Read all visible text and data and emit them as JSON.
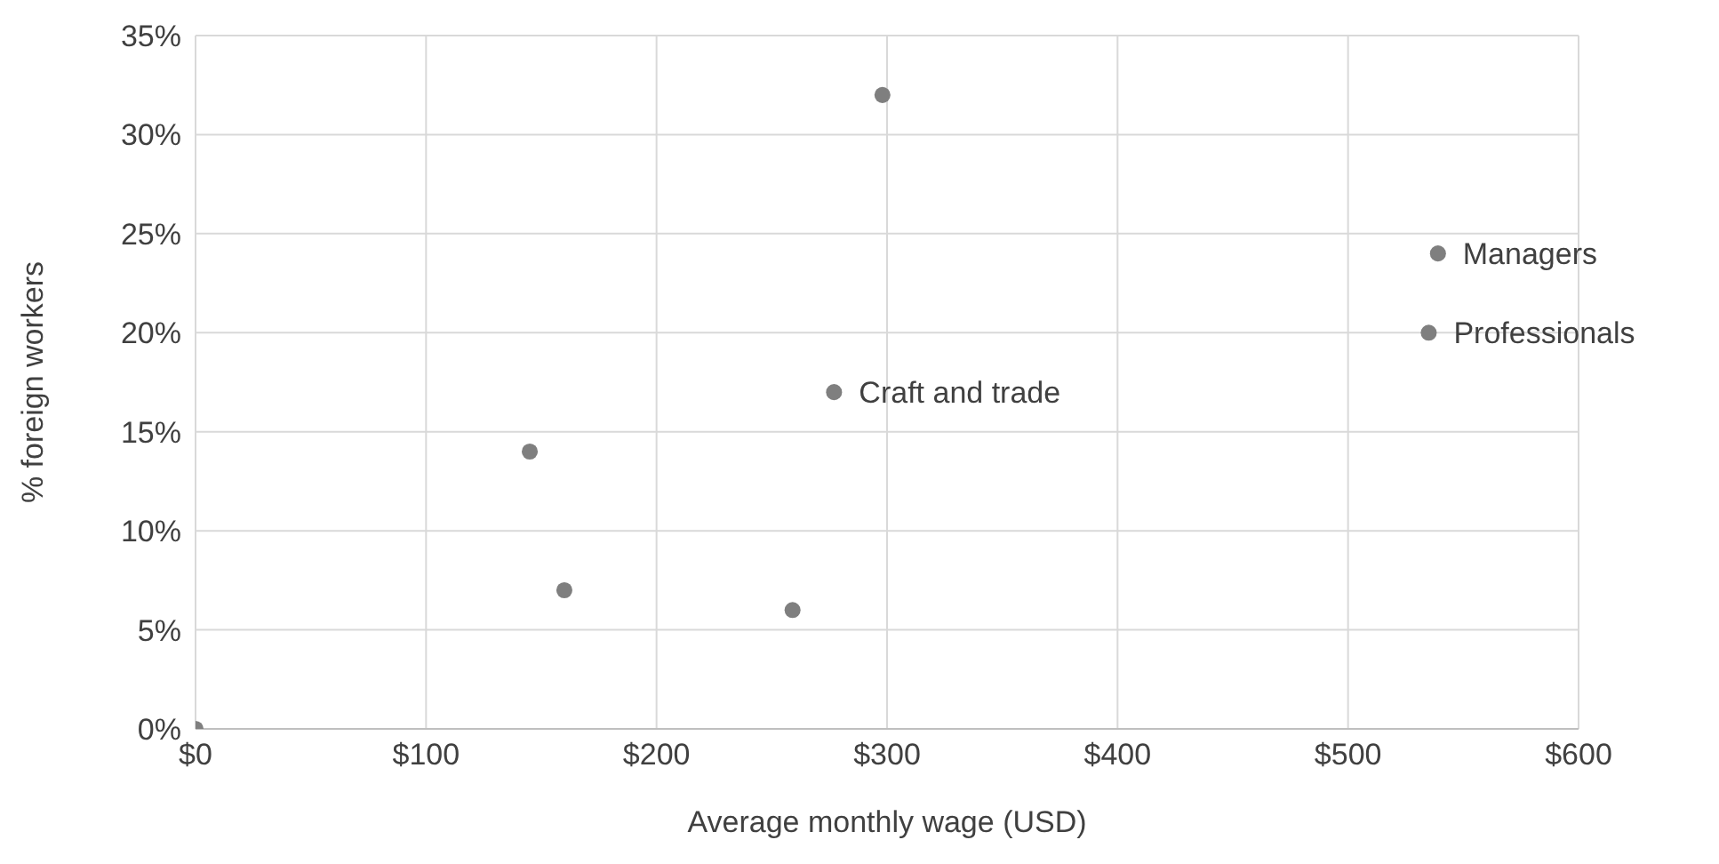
{
  "chart_data": {
    "type": "scatter",
    "xlabel": "Average monthly wage (USD)",
    "ylabel": "% foreign workers",
    "x": [
      0,
      145,
      160,
      259,
      277,
      298,
      535,
      539
    ],
    "series": [
      {
        "color": "#7f7f7f",
        "values": [
          0,
          14,
          7,
          6,
          17,
          32,
          20,
          24
        ]
      }
    ],
    "xlim": [
      0,
      600
    ],
    "xticks": [
      {
        "value": 0,
        "label": "$0"
      },
      {
        "value": 100,
        "label": "$100"
      },
      {
        "value": 200,
        "label": "$200"
      },
      {
        "value": 300,
        "label": "$300"
      },
      {
        "value": 400,
        "label": "$400"
      },
      {
        "value": 500,
        "label": "$500"
      },
      {
        "value": 600,
        "label": "$600"
      }
    ],
    "ylim": [
      0,
      35
    ],
    "yticks": [
      {
        "value": 0,
        "label": "0%"
      },
      {
        "value": 5,
        "label": "5%"
      },
      {
        "value": 10,
        "label": "10%"
      },
      {
        "value": 15,
        "label": "15%"
      },
      {
        "value": 20,
        "label": "20%"
      },
      {
        "value": 25,
        "label": "25%"
      },
      {
        "value": 30,
        "label": "30%"
      },
      {
        "value": 35,
        "label": "35%"
      }
    ],
    "annotations": [
      {
        "text": "Craft and trade",
        "x": 277,
        "y": 17
      },
      {
        "text": "Professionals",
        "x": 535,
        "y": 20
      },
      {
        "text": "Managers",
        "x": 539,
        "y": 24
      }
    ],
    "grid": true,
    "marker": "circle",
    "legend": false
  }
}
